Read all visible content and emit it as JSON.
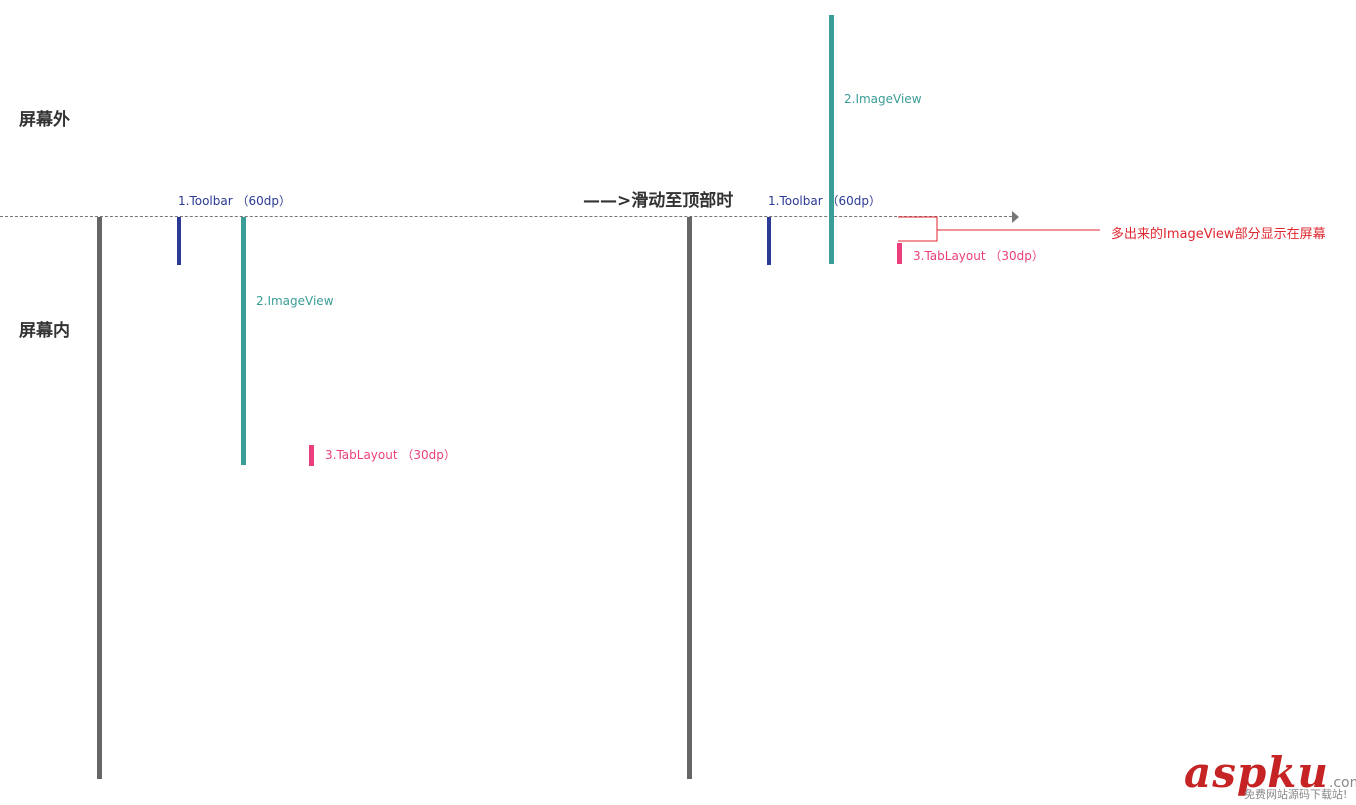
{
  "zones": {
    "outside": "屏幕外",
    "inside": "屏幕内"
  },
  "transition_label": "——>滑动至顶部时",
  "before": {
    "toolbar_label": "1.Toolbar （60dp）",
    "imageview_label": "2.ImageView",
    "tablayout_label": "3.TabLayout （30dp）"
  },
  "after": {
    "toolbar_label": "1.Toolbar （60dp）",
    "imageview_label": "2.ImageView",
    "tablayout_label": "3.TabLayout （30dp）",
    "annotation": "多出来的ImageView部分显示在屏幕"
  },
  "colors": {
    "toolbar": "#2b3a94",
    "imageview": "#3a9d97",
    "tablayout": "#ea3f7c",
    "screen": "#666666",
    "annotation": "#e0262f"
  },
  "watermark": {
    "main": "aspku",
    "suffix": ".com",
    "sub": "免费网站源码下载站!"
  }
}
